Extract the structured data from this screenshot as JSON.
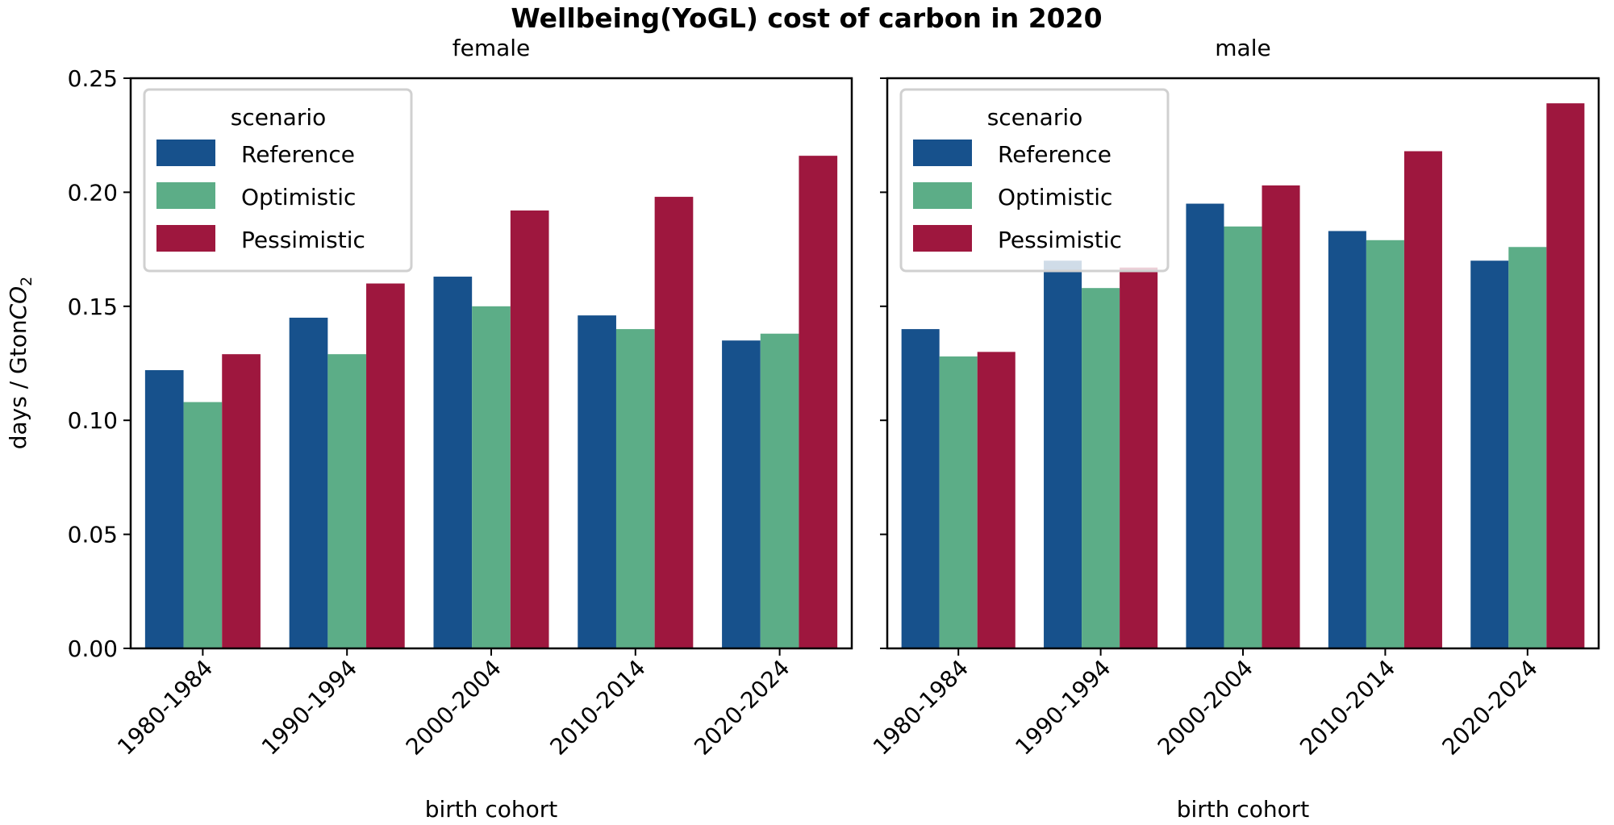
{
  "chart_data": {
    "type": "bar",
    "title": "Wellbeing(YoGL) cost of carbon in 2020",
    "ylabel": {
      "prefix": "days / Gton",
      "italic": "CO",
      "sub": "2"
    },
    "xlabel": "birth cohort",
    "ylim": [
      0,
      0.25
    ],
    "yticks": [
      "0.00",
      "0.05",
      "0.10",
      "0.15",
      "0.20",
      "0.25"
    ],
    "grid": false,
    "legend": {
      "title": "scenario",
      "placement": "top-left"
    },
    "categories": [
      "1980-1984",
      "1990-1994",
      "2000-2004",
      "2010-2014",
      "2020-2024"
    ],
    "colors": {
      "Reference": "#17518c",
      "Optimistic": "#5cad87",
      "Pessimistic": "#9e173e"
    },
    "panels": [
      {
        "name": "female",
        "series": [
          {
            "name": "Reference",
            "values": [
              0.122,
              0.145,
              0.163,
              0.146,
              0.135
            ]
          },
          {
            "name": "Optimistic",
            "values": [
              0.108,
              0.129,
              0.15,
              0.14,
              0.138
            ]
          },
          {
            "name": "Pessimistic",
            "values": [
              0.129,
              0.16,
              0.192,
              0.198,
              0.216
            ]
          }
        ]
      },
      {
        "name": "male",
        "series": [
          {
            "name": "Reference",
            "values": [
              0.14,
              0.17,
              0.195,
              0.183,
              0.17
            ]
          },
          {
            "name": "Optimistic",
            "values": [
              0.128,
              0.158,
              0.185,
              0.179,
              0.176
            ]
          },
          {
            "name": "Pessimistic",
            "values": [
              0.13,
              0.167,
              0.203,
              0.218,
              0.239
            ]
          }
        ]
      }
    ]
  }
}
